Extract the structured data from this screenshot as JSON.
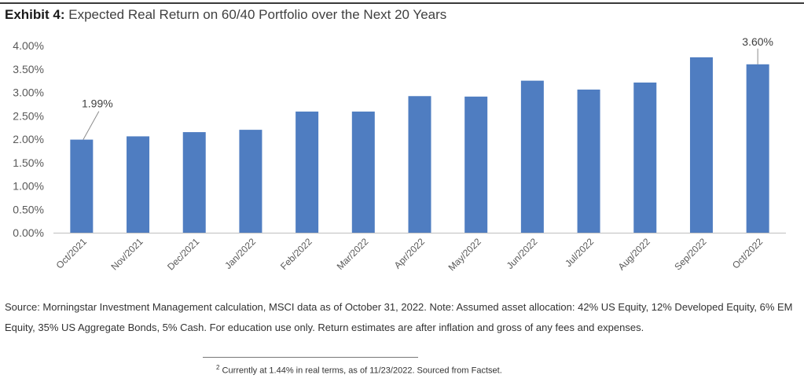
{
  "exhibit": {
    "prefix": "Exhibit 4:",
    "title": "Expected Real Return on 60/40 Portfolio over the Next 20 Years"
  },
  "chart_data": {
    "type": "bar",
    "categories": [
      "Oct/2021",
      "Nov/2021",
      "Dec/2021",
      "Jan/2022",
      "Feb/2022",
      "Mar/2022",
      "Apr/2022",
      "May/2022",
      "Jun/2022",
      "Jul/2022",
      "Aug/2022",
      "Sep/2022",
      "Oct/2022"
    ],
    "values": [
      1.99,
      2.06,
      2.15,
      2.2,
      2.59,
      2.59,
      2.92,
      2.91,
      3.25,
      3.06,
      3.21,
      3.75,
      3.6
    ],
    "ylim": [
      0,
      4
    ],
    "yticks": [
      0,
      0.5,
      1.0,
      1.5,
      2.0,
      2.5,
      3.0,
      3.5,
      4.0
    ],
    "ytick_labels": [
      "0.00%",
      "0.50%",
      "1.00%",
      "1.50%",
      "2.00%",
      "2.50%",
      "3.00%",
      "3.50%",
      "4.00%"
    ],
    "annotations": [
      {
        "category": "Oct/2021",
        "label": "1.99%"
      },
      {
        "category": "Oct/2022",
        "label": "3.60%"
      }
    ],
    "bar_color": "#4f7dc1",
    "grid": false,
    "legend": "none"
  },
  "source_note": "Source: Morningstar Investment Management calculation, MSCI data as of October 31, 2022. Note: Assumed asset allocation: 42% US Equity, 12% Developed Equity, 6% EM Equity, 35% US Aggregate Bonds, 5% Cash. For education use only. Return estimates are after inflation and gross of any fees and expenses.",
  "footnote": {
    "marker": "2",
    "text": "Currently at 1.44% in real terms, as of 11/23/2022. Sourced from Factset."
  }
}
